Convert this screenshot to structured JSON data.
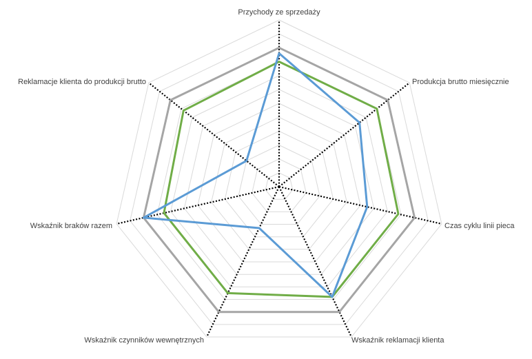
{
  "chart_data": {
    "type": "radar",
    "categories": [
      "Przychody ze sprzedaży",
      "Produkcja brutto miesięcznie",
      "Czas cyklu linii pieca",
      "Wskaźnik reklamacji klienta",
      "Wskaźnik czynników wewnętrznych",
      "Wskaźnik braków razem",
      "Reklamacje klienta do produkcji brutto"
    ],
    "rlim": [
      0,
      1.2
    ],
    "grid": true,
    "legend": "none",
    "series": [
      {
        "values": [
          1.0,
          1.0,
          1.0,
          1.0,
          1.0,
          1.0,
          1.0
        ],
        "color": "#a5a5a5"
      },
      {
        "values": [
          0.9,
          0.9,
          0.88,
          0.88,
          0.85,
          0.85,
          0.88
        ],
        "color": "#70ad47"
      },
      {
        "values": [
          0.96,
          0.74,
          0.65,
          0.88,
          0.33,
          1.0,
          0.3
        ],
        "color": "#5b9bd5"
      }
    ]
  }
}
